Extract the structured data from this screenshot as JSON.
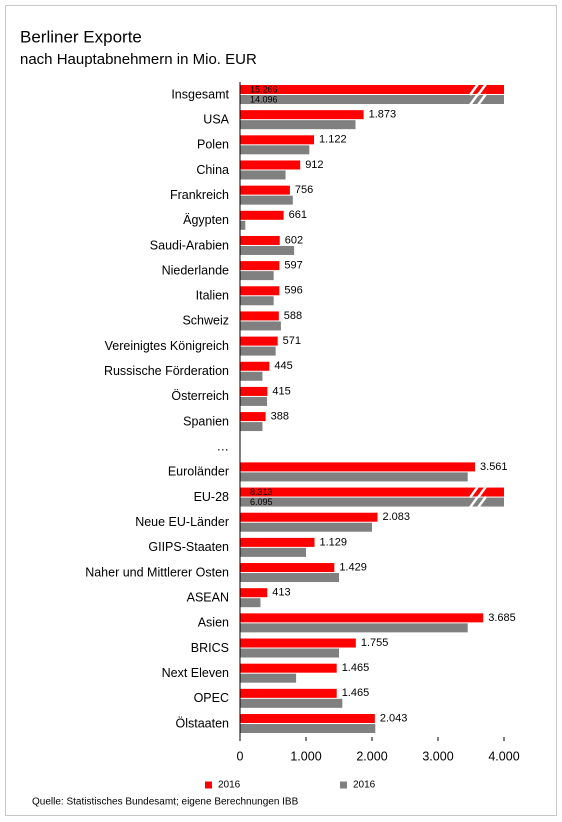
{
  "chart_data": {
    "type": "bar",
    "title": "Berliner Exporte",
    "subtitle": "nach Hauptabnehmern in Mio. EUR",
    "source": "Quelle:  Statistisches Bundesamt;  eigene Berechnungen  IBB",
    "categories": [
      "Insgesamt",
      "USA",
      "Polen",
      "China",
      "Frankreich",
      "Ägypten",
      "Saudi-Arabien",
      "Niederlande",
      "Italien",
      "Schweiz",
      "Vereinigtes Königreich",
      "Russische Förderation",
      "Österreich",
      "Spanien",
      "…",
      "Euroländer",
      "EU-28",
      "Neue EU-Länder",
      "GIIPS-Staaten",
      "Naher und Mittlerer Osten",
      "ASEAN",
      "Asien",
      "BRICS",
      "Next Eleven",
      "OPEC",
      "Ölstaaten"
    ],
    "series": [
      {
        "name": "2016",
        "color": "#ff0000",
        "values": [
          15266,
          1873,
          1122,
          912,
          756,
          661,
          602,
          597,
          596,
          588,
          571,
          445,
          415,
          388,
          null,
          3561,
          8313,
          2083,
          1129,
          1429,
          413,
          3685,
          1755,
          1465,
          1465,
          2043
        ],
        "value_labels": [
          "15.266",
          "1.873",
          "1.122",
          "912",
          "756",
          "661",
          "602",
          "597",
          "596",
          "588",
          "571",
          "445",
          "415",
          "388",
          null,
          "3.561",
          "8.313",
          "2.083",
          "1.129",
          "1.429",
          "413",
          "3.685",
          "1.755",
          "1.465",
          "1.465",
          "2.043"
        ]
      },
      {
        "name": "2016",
        "color": "#808080",
        "values": [
          14096,
          1750,
          1050,
          690,
          800,
          80,
          820,
          510,
          510,
          620,
          540,
          340,
          410,
          340,
          null,
          3450,
          6095,
          2000,
          1000,
          1500,
          310,
          3450,
          1500,
          850,
          1550,
          2050
        ],
        "value_labels": [
          "14.096",
          null,
          null,
          null,
          null,
          null,
          null,
          null,
          null,
          null,
          null,
          null,
          null,
          null,
          null,
          null,
          "6.095",
          null,
          null,
          null,
          null,
          null,
          null,
          null,
          null,
          null
        ]
      }
    ],
    "xlim": [
      0,
      4000
    ],
    "xticks": [
      0,
      {
        "value": 1000,
        "label": "1.000"
      },
      {
        "value": 2000,
        "label": "2.000"
      },
      {
        "value": 3000,
        "label": "3.000"
      },
      {
        "value": 4000,
        "label": "4.000"
      }
    ],
    "grid": false,
    "legend": "bottom"
  }
}
